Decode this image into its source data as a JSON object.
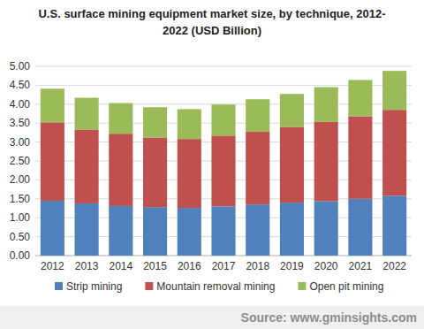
{
  "chart_data": {
    "type": "bar",
    "stacked": true,
    "grid": true,
    "legend": "bottom",
    "title": "U.S. surface mining equipment market size, by technique, 2012-2022 (USD Billion)",
    "source": "Source: www.gminsights.com",
    "categories": [
      "2012",
      "2013",
      "2014",
      "2015",
      "2016",
      "2017",
      "2018",
      "2019",
      "2020",
      "2021",
      "2022"
    ],
    "series": [
      {
        "name": "Strip mining",
        "color": "#4f81bd",
        "values": [
          1.45,
          1.38,
          1.31,
          1.28,
          1.26,
          1.3,
          1.35,
          1.4,
          1.44,
          1.5,
          1.58
        ]
      },
      {
        "name": "Mountain removal mining",
        "color": "#c0504d",
        "values": [
          2.07,
          1.95,
          1.91,
          1.84,
          1.82,
          1.87,
          1.92,
          2.0,
          2.09,
          2.18,
          2.27
        ]
      },
      {
        "name": "Open pit mining",
        "color": "#9bbb59",
        "values": [
          0.89,
          0.84,
          0.81,
          0.8,
          0.79,
          0.82,
          0.86,
          0.87,
          0.92,
          0.96,
          1.03
        ]
      }
    ],
    "ylim": [
      0,
      5
    ],
    "yticks": [
      {
        "value": 0,
        "label": "0.00"
      },
      {
        "value": 0.5,
        "label": "0.50"
      },
      {
        "value": 1,
        "label": "1.00"
      },
      {
        "value": 1.5,
        "label": "1.50"
      },
      {
        "value": 2,
        "label": "2.00"
      },
      {
        "value": 2.5,
        "label": "2.50"
      },
      {
        "value": 3,
        "label": "3.00"
      },
      {
        "value": 3.5,
        "label": "3.50"
      },
      {
        "value": 4,
        "label": "4.00"
      },
      {
        "value": 4.5,
        "label": "4.50"
      },
      {
        "value": 5,
        "label": "5.00"
      }
    ]
  }
}
